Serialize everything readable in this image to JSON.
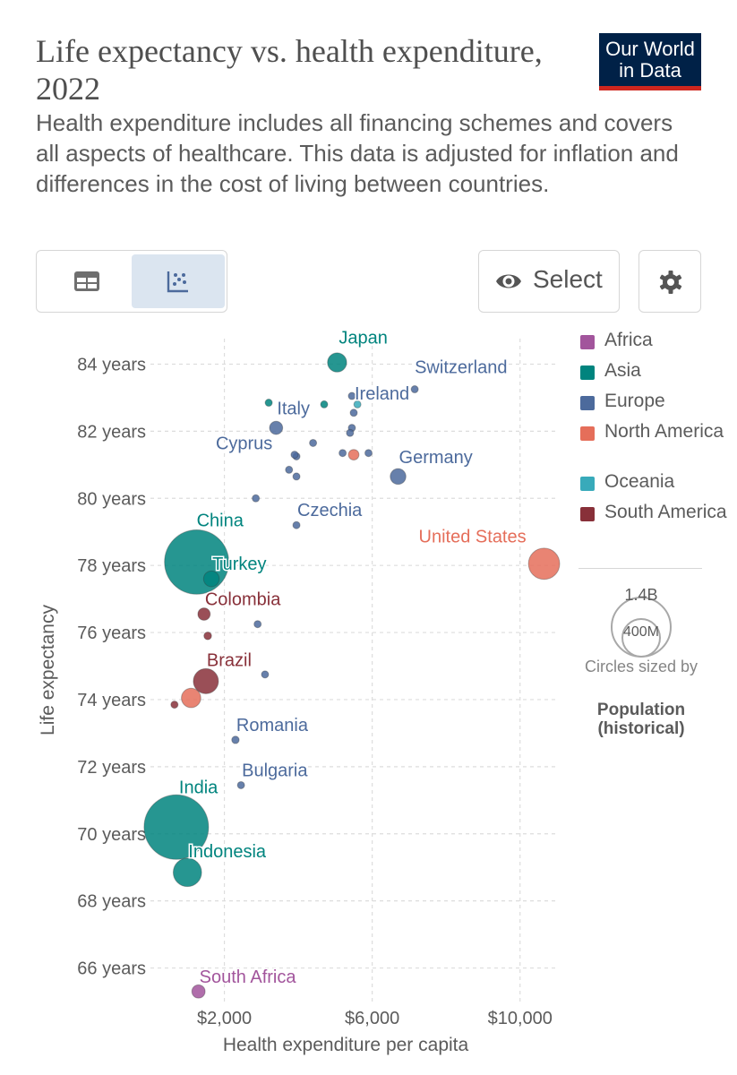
{
  "header": {
    "title": "Life expectancy vs. health expenditure, 2022",
    "subtitle": "Health expenditure includes all financing schemes and covers all aspects of healthcare. This data is adjusted for inflation and differences in the cost of living between countries.",
    "logo_line1": "Our World",
    "logo_line2": "in Data"
  },
  "controls": {
    "table_tab_icon": "table-icon",
    "chart_tab_icon": "scatter-icon",
    "select_label": "Select",
    "select_icon": "eye-icon",
    "settings_icon": "gear-icon"
  },
  "legend": {
    "regions": [
      {
        "name": "Africa",
        "color": "#a2559c"
      },
      {
        "name": "Asia",
        "color": "#00847e"
      },
      {
        "name": "Europe",
        "color": "#4c6a9c"
      },
      {
        "name": "North America",
        "color": "#e56e5a"
      },
      {
        "name": "Oceania",
        "color": "#38aaba"
      },
      {
        "name": "South America",
        "color": "#883039"
      }
    ],
    "size_large": "1.4B",
    "size_small": "400M",
    "size_note": "Circles sized by",
    "size_variable": "Population (historical)"
  },
  "chart_data": {
    "type": "scatter",
    "title": "Life expectancy vs. health expenditure, 2022",
    "xlabel": "Health expenditure per capita",
    "ylabel": "Life expectancy",
    "xlim": [
      0,
      11000
    ],
    "ylim": [
      65,
      84.6
    ],
    "x_ticks": [
      2000,
      6000,
      10000
    ],
    "x_tick_labels": [
      "$2,000",
      "$6,000",
      "$10,000"
    ],
    "y_ticks": [
      66,
      68,
      70,
      72,
      74,
      76,
      78,
      80,
      82,
      84
    ],
    "y_tick_labels": [
      "66 years",
      "68 years",
      "70 years",
      "72 years",
      "74 years",
      "76 years",
      "78 years",
      "80 years",
      "82 years",
      "84 years"
    ],
    "points": [
      {
        "label": "Japan",
        "region": "Asia",
        "x": 5050,
        "y": 84.05,
        "pop": 125000000
      },
      {
        "label": "Switzerland",
        "region": "Europe",
        "x": 7150,
        "y": 83.25,
        "pop": 8800000
      },
      {
        "label": "Italy",
        "region": "Europe",
        "x": 3400,
        "y": 82.1,
        "pop": 59000000
      },
      {
        "label": "Ireland",
        "region": "Europe",
        "x": 5500,
        "y": 82.55,
        "pop": 5100000
      },
      {
        "label": "Germany",
        "region": "Europe",
        "x": 6700,
        "y": 80.65,
        "pop": 84000000
      },
      {
        "label": "Cyprus",
        "region": "Europe",
        "x": 3900,
        "y": 81.3,
        "pop": 1300000
      },
      {
        "label": "Czechia",
        "region": "Europe",
        "x": 3950,
        "y": 79.2,
        "pop": 10500000
      },
      {
        "label": "United States",
        "region": "North America",
        "x": 10650,
        "y": 78.05,
        "pop": 333000000
      },
      {
        "label": "China",
        "region": "Asia",
        "x": 1250,
        "y": 78.1,
        "pop": 1410000000
      },
      {
        "label": "Turkey",
        "region": "Asia",
        "x": 1650,
        "y": 77.6,
        "pop": 85000000
      },
      {
        "label": "Colombia",
        "region": "South America",
        "x": 1450,
        "y": 76.55,
        "pop": 52000000
      },
      {
        "label": "Brazil",
        "region": "South America",
        "x": 1500,
        "y": 74.55,
        "pop": 215000000
      },
      {
        "label": "Romania",
        "region": "Europe",
        "x": 2300,
        "y": 72.8,
        "pop": 19000000
      },
      {
        "label": "Bulgaria",
        "region": "Europe",
        "x": 2450,
        "y": 71.45,
        "pop": 6800000
      },
      {
        "label": "India",
        "region": "Asia",
        "x": 700,
        "y": 70.2,
        "pop": 1420000000
      },
      {
        "label": "Indonesia",
        "region": "Asia",
        "x": 1000,
        "y": 68.85,
        "pop": 275000000
      },
      {
        "label": "South Africa",
        "region": "Africa",
        "x": 1300,
        "y": 65.3,
        "pop": 60000000
      },
      {
        "label": "",
        "region": "Asia",
        "x": 3200,
        "y": 82.85,
        "pop": 5000000
      },
      {
        "label": "",
        "region": "Asia",
        "x": 4700,
        "y": 82.8,
        "pop": 10000000
      },
      {
        "label": "",
        "region": "Europe",
        "x": 5450,
        "y": 83.05,
        "pop": 5000000
      },
      {
        "label": "",
        "region": "Oceania",
        "x": 5600,
        "y": 82.8,
        "pop": 5000000
      },
      {
        "label": "",
        "region": "Europe",
        "x": 5450,
        "y": 82.1,
        "pop": 5000000
      },
      {
        "label": "",
        "region": "Europe",
        "x": 5400,
        "y": 81.95,
        "pop": 5000000
      },
      {
        "label": "",
        "region": "Europe",
        "x": 4400,
        "y": 81.65,
        "pop": 5000000
      },
      {
        "label": "",
        "region": "Europe",
        "x": 5200,
        "y": 81.35,
        "pop": 5000000
      },
      {
        "label": "",
        "region": "Europe",
        "x": 5900,
        "y": 81.35,
        "pop": 5000000
      },
      {
        "label": "",
        "region": "North America",
        "x": 5500,
        "y": 81.3,
        "pop": 38000000
      },
      {
        "label": "",
        "region": "Europe",
        "x": 3950,
        "y": 81.25,
        "pop": 5000000
      },
      {
        "label": "",
        "region": "Europe",
        "x": 3750,
        "y": 80.85,
        "pop": 5000000
      },
      {
        "label": "",
        "region": "Europe",
        "x": 3950,
        "y": 80.65,
        "pop": 5000000
      },
      {
        "label": "",
        "region": "Europe",
        "x": 2850,
        "y": 80.0,
        "pop": 2000000
      },
      {
        "label": "",
        "region": "Europe",
        "x": 2900,
        "y": 76.25,
        "pop": 2000000
      },
      {
        "label": "",
        "region": "South America",
        "x": 1550,
        "y": 75.9,
        "pop": 20000000
      },
      {
        "label": "",
        "region": "Europe",
        "x": 3100,
        "y": 74.75,
        "pop": 3000000
      },
      {
        "label": "",
        "region": "North America",
        "x": 1100,
        "y": 74.05,
        "pop": 128000000
      },
      {
        "label": "",
        "region": "South America",
        "x": 650,
        "y": 73.85,
        "pop": 17000000
      }
    ]
  }
}
